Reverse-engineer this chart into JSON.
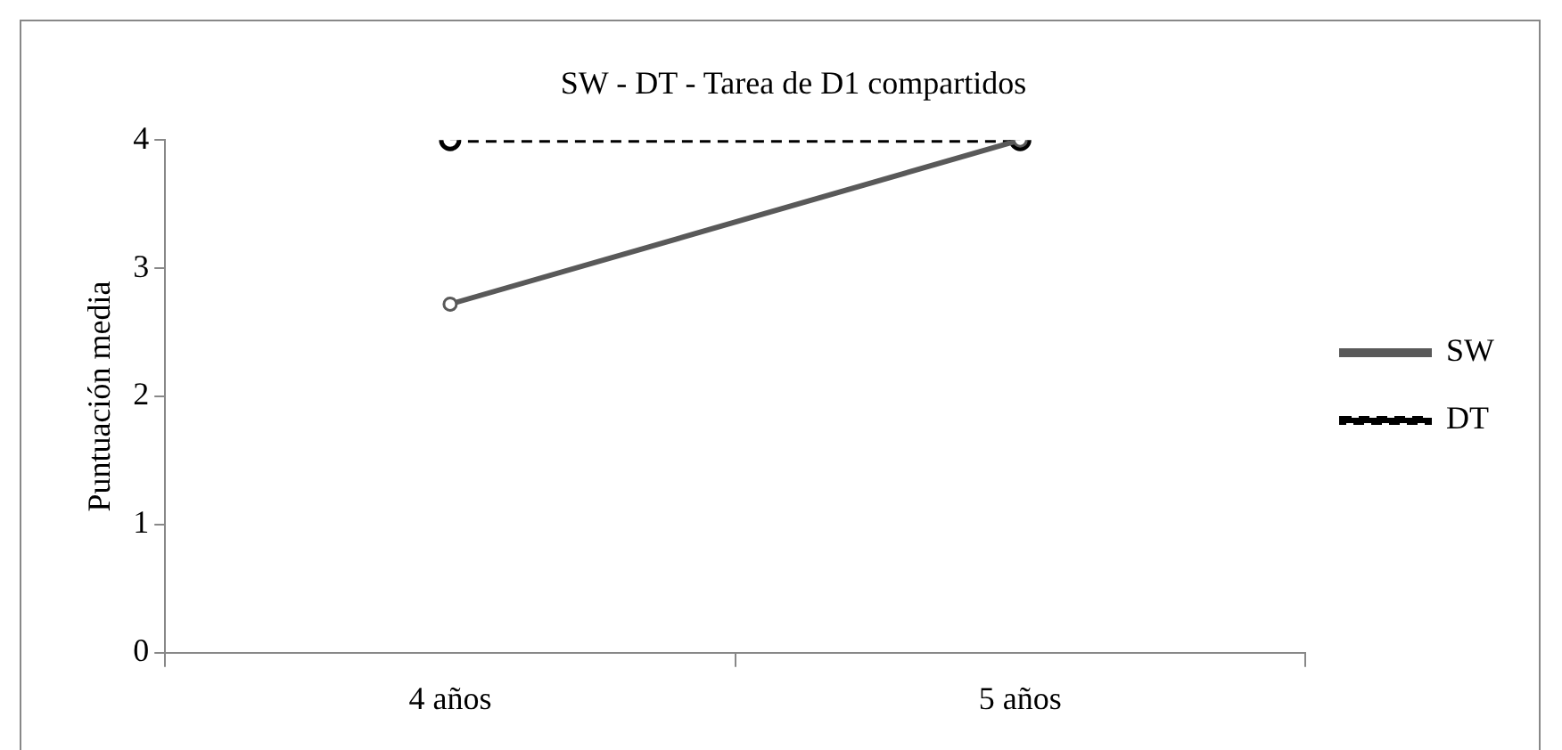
{
  "chart_data": {
    "type": "line",
    "title": "SW - DT - Tarea de D1 compartidos",
    "ylabel": "Puntuación media",
    "categories": [
      "4 años",
      "5 años"
    ],
    "series": [
      {
        "name": "SW",
        "color": "#595959",
        "values": [
          2.72,
          4
        ],
        "line_style": "solid"
      },
      {
        "name": "DT",
        "color": "#000000",
        "values": [
          4,
          4
        ],
        "line_style": "dashed"
      }
    ],
    "ylim": [
      0,
      4
    ],
    "yticks": [
      0,
      1,
      2,
      3,
      4
    ],
    "grid": false,
    "legend": "right",
    "marker": "circle"
  }
}
